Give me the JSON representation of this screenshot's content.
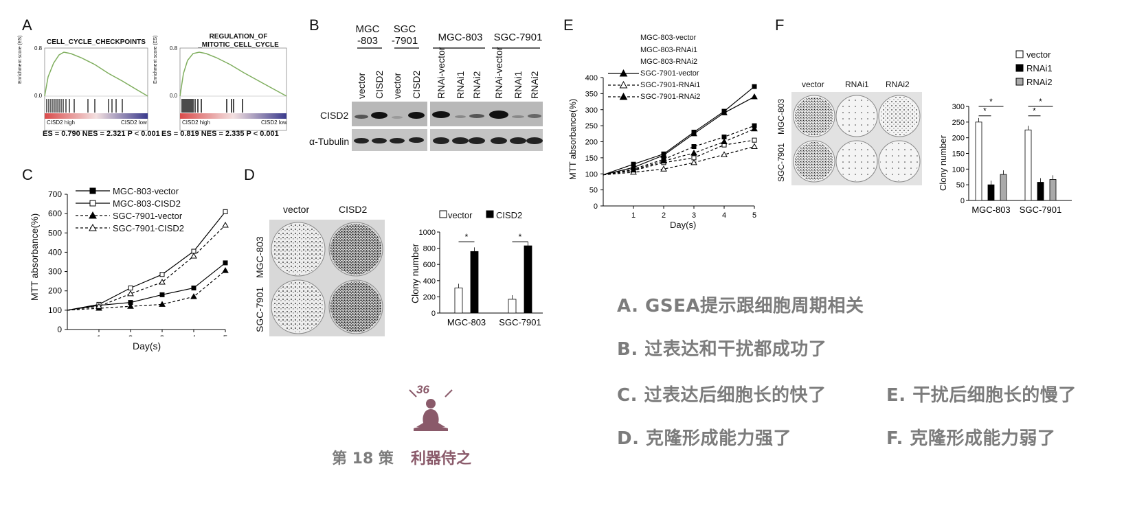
{
  "panel_labels": {
    "A": "A",
    "B": "B",
    "C": "C",
    "D": "D",
    "E": "E",
    "F": "F"
  },
  "gsea": [
    {
      "title_line1": "CELL_CYCLE_CHECKPOINTS",
      "title_line2": "",
      "ylabel": "Enrichment score (ES)",
      "y_top": "0.8",
      "y_zero": "0.0",
      "left": "CISD2 high",
      "right": "CISD2 low",
      "stats": "ES = 0.790   NES = 2.321    P < 0.001"
    },
    {
      "title_line1": "REGULATION_OF",
      "title_line2": "_MITOTIC_CELL_CYCLE",
      "ylabel": "Enrichment score (ES)",
      "y_top": "0.8",
      "y_zero": "0.0",
      "left": "CISD2 high",
      "right": "CISD2 low",
      "stats": "ES = 0.819   NES = 2.335    P < 0.001"
    }
  ],
  "western": {
    "groups_top": [
      "MGC\n-803",
      "SGC\n-7901",
      "MGC-803",
      "SGC-7901"
    ],
    "lanes": [
      "vector",
      "CISD2",
      "vector",
      "CISD2",
      "RNAi-vector",
      "RNAi1",
      "RNAi2",
      "RNAi-vector",
      "RNAi1",
      "RNAi2"
    ],
    "row_labels": [
      "CISD2",
      "α-Tubulin"
    ]
  },
  "panel_c": {
    "legend": [
      "MGC-803-vector",
      "MGC-803-CISD2",
      "SGC-7901-vector",
      "SGC-7901-CISD2"
    ],
    "ylabel": "MTT absorbance(%)",
    "xlabel": "Day(s)"
  },
  "panel_d": {
    "dish_cols": [
      "vector",
      "CISD2"
    ],
    "dish_rows": [
      "MGC-803",
      "SGC-7901"
    ],
    "legend": [
      "vector",
      "CISD2"
    ],
    "ylabel": "Clony number",
    "star": "*"
  },
  "panel_e": {
    "legend": [
      "MGC-803-vector",
      "MGC-803-RNAi1",
      "MGC-803-RNAi2",
      "SGC-7901-vector",
      "SGC-7901-RNAi1",
      "SGC-7901-RNAi2"
    ],
    "ylabel": "MTT absorbance(%)",
    "xlabel": "Day(s)"
  },
  "panel_f": {
    "dish_cols": [
      "vector",
      "RNAi1",
      "RNAi2"
    ],
    "dish_rows": [
      "MGC-803",
      "SGC-7901"
    ],
    "legend": [
      "vector",
      "RNAi1",
      "RNAi2"
    ],
    "ylabel": "Clony number",
    "star": "*"
  },
  "chart_data": [
    {
      "type": "line",
      "id": "C",
      "x": [
        0,
        1,
        2,
        3,
        4,
        5
      ],
      "xticks": [
        1,
        2,
        3,
        4,
        5
      ],
      "ylim": [
        0,
        700
      ],
      "yticks": [
        0,
        100,
        200,
        300,
        400,
        500,
        600,
        700
      ],
      "series": [
        {
          "name": "MGC-803-vector",
          "values": [
            100,
            125,
            140,
            180,
            215,
            345
          ]
        },
        {
          "name": "MGC-803-CISD2",
          "values": [
            100,
            130,
            215,
            285,
            405,
            610
          ]
        },
        {
          "name": "SGC-7901-vector",
          "values": [
            100,
            110,
            120,
            130,
            170,
            305
          ]
        },
        {
          "name": "SGC-7901-CISD2",
          "values": [
            100,
            120,
            185,
            245,
            380,
            540
          ]
        }
      ],
      "xlabel": "Day(s)",
      "ylabel": "MTT absorbance(%)"
    },
    {
      "type": "bar",
      "id": "D",
      "categories": [
        "MGC-803",
        "SGC-7901"
      ],
      "ylim": [
        0,
        1000
      ],
      "yticks": [
        0,
        200,
        400,
        600,
        800,
        1000
      ],
      "series": [
        {
          "name": "vector",
          "values": [
            310,
            170
          ]
        },
        {
          "name": "CISD2",
          "values": [
            760,
            830
          ]
        }
      ],
      "ylabel": "Clony number"
    },
    {
      "type": "line",
      "id": "E",
      "x": [
        0,
        1,
        2,
        3,
        4,
        5
      ],
      "xticks": [
        1,
        2,
        3,
        4,
        5
      ],
      "ylim": [
        0,
        400
      ],
      "yticks": [
        0,
        50,
        100,
        150,
        200,
        250,
        300,
        350,
        400
      ],
      "series": [
        {
          "name": "MGC-803-vector",
          "values": [
            97,
            130,
            162,
            230,
            295,
            372
          ]
        },
        {
          "name": "MGC-803-RNAi1",
          "values": [
            97,
            110,
            135,
            150,
            190,
            205
          ]
        },
        {
          "name": "MGC-803-RNAi2",
          "values": [
            97,
            115,
            145,
            185,
            215,
            250
          ]
        },
        {
          "name": "SGC-7901-vector",
          "values": [
            97,
            120,
            158,
            225,
            290,
            340
          ]
        },
        {
          "name": "SGC-7901-RNAi1",
          "values": [
            97,
            105,
            115,
            135,
            160,
            185
          ]
        },
        {
          "name": "SGC-7901-RNAi2",
          "values": [
            97,
            112,
            140,
            165,
            200,
            240
          ]
        }
      ],
      "xlabel": "Day(s)",
      "ylabel": "MTT absorbance(%)"
    },
    {
      "type": "bar",
      "id": "F",
      "categories": [
        "MGC-803",
        "SGC-7901"
      ],
      "ylim": [
        0,
        300
      ],
      "yticks": [
        0,
        50,
        100,
        150,
        200,
        250,
        300
      ],
      "series": [
        {
          "name": "vector",
          "values": [
            250,
            225
          ]
        },
        {
          "name": "RNAi1",
          "values": [
            50,
            58
          ]
        },
        {
          "name": "RNAi2",
          "values": [
            83,
            67
          ]
        }
      ],
      "ylabel": "Clony number"
    }
  ],
  "captions": {
    "a": "A.  GSEA提示跟细胞周期相关",
    "b": "B.  过表达和干扰都成功了",
    "c": "C.  过表达后细胞长的快了",
    "e": "E.  干扰后细胞长的慢了",
    "d": "D.  克隆形成能力强了",
    "f": "F.  克隆形成能力弱了"
  },
  "footer": {
    "number": "36",
    "left": "第 18 策",
    "right": "利器侍之"
  },
  "colors": {
    "caption": "#7c7c7c",
    "footer_accent": "#8a5a6a",
    "gsea_curve": "#7fae5e"
  }
}
